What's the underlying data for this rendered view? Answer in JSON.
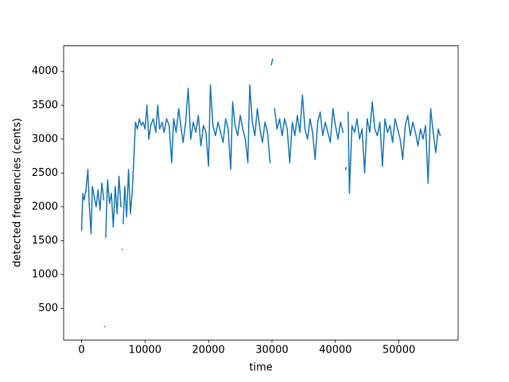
{
  "chart_data": {
    "type": "line",
    "x_label": "time",
    "y_label": "detected frequencies (cents)",
    "x": [
      0,
      200,
      400,
      700,
      1000,
      1200,
      1500,
      1700,
      2000,
      2300,
      2600,
      2900,
      3200,
      3500,
      3550,
      3600,
      3650,
      3700,
      3800,
      4100,
      4400,
      4700,
      5000,
      5300,
      5600,
      5900,
      6200,
      6300,
      6400,
      6450,
      6500,
      6550,
      6800,
      7100,
      7400,
      7700,
      8000,
      8200,
      8500,
      8800,
      9100,
      9400,
      9700,
      10000,
      10300,
      10600,
      10900,
      11300,
      11700,
      12000,
      12300,
      12700,
      13000,
      13400,
      13800,
      14200,
      14500,
      14900,
      15300,
      15700,
      16000,
      16400,
      16800,
      17200,
      17600,
      18000,
      18400,
      18800,
      19200,
      19600,
      20000,
      20300,
      20700,
      21100,
      21500,
      21900,
      22300,
      22700,
      23100,
      23500,
      23800,
      24200,
      24600,
      25000,
      25400,
      25800,
      26200,
      26500,
      26900,
      27300,
      27700,
      28100,
      28500,
      28900,
      29300,
      29700,
      29800,
      29900,
      30100,
      30200,
      30400,
      30800,
      31200,
      31600,
      32000,
      32400,
      32800,
      33200,
      33600,
      34000,
      34400,
      34800,
      35200,
      35600,
      36000,
      36400,
      36800,
      37200,
      37600,
      38000,
      38400,
      38800,
      39200,
      39600,
      40000,
      40400,
      40800,
      41200,
      41400,
      41600,
      41700,
      41800,
      42000,
      42200,
      42600,
      43000,
      43400,
      43800,
      44200,
      44600,
      45000,
      45400,
      45800,
      46200,
      46600,
      47000,
      47400,
      47800,
      48200,
      48600,
      49000,
      49400,
      49800,
      50200,
      50600,
      51000,
      51400,
      51800,
      52200,
      52600,
      53000,
      53400,
      53800,
      54200,
      54600,
      55000,
      55400,
      55800,
      56200,
      56500
    ],
    "series": [
      {
        "color": "#1f77b4",
        "values": [
          1650,
          2200,
          2100,
          2250,
          2550,
          2050,
          1600,
          2300,
          2150,
          2000,
          2250,
          1950,
          2350,
          2100,
          null,
          230,
          230,
          null,
          1550,
          2400,
          2050,
          2200,
          1700,
          2300,
          1900,
          2450,
          2000,
          null,
          1370,
          1370,
          null,
          1750,
          2300,
          1850,
          2550,
          1900,
          2250,
          2650,
          3250,
          3150,
          3300,
          3200,
          3250,
          3150,
          3500,
          3000,
          3200,
          3300,
          3100,
          3500,
          3150,
          3250,
          3100,
          3300,
          3200,
          2650,
          3300,
          3100,
          3450,
          3150,
          2950,
          3250,
          3750,
          3000,
          3250,
          3100,
          3350,
          2900,
          3200,
          3100,
          2600,
          3800,
          3200,
          3050,
          3250,
          3100,
          2950,
          3300,
          3150,
          2550,
          3550,
          3200,
          3050,
          3350,
          3150,
          3000,
          2650,
          3800,
          3250,
          3050,
          3450,
          3150,
          2950,
          3250,
          3100,
          2650,
          null,
          4100,
          4180,
          null,
          3450,
          3150,
          3300,
          3050,
          3300,
          3150,
          2650,
          3250,
          3050,
          3350,
          3100,
          3650,
          3150,
          3000,
          3300,
          3100,
          2700,
          3250,
          3400,
          3050,
          3250,
          3100,
          2950,
          3450,
          3200,
          3000,
          3250,
          3100,
          null,
          2550,
          2580,
          null,
          3400,
          2200,
          3200,
          3100,
          3300,
          3000,
          3150,
          2500,
          3300,
          3100,
          3550,
          3150,
          3050,
          3250,
          2600,
          3300,
          3100,
          3200,
          2950,
          3300,
          3150,
          3000,
          2700,
          3200,
          3350,
          3050,
          3250,
          3100,
          2900,
          3150,
          3000,
          3200,
          2350,
          3450,
          3100,
          2800,
          3150,
          3050
        ]
      }
    ],
    "xlim": [
      -2825,
      59325
    ],
    "ylim": [
      32,
      4378
    ],
    "xticks": [
      0,
      10000,
      20000,
      30000,
      40000,
      50000
    ],
    "yticks": [
      500,
      1000,
      1500,
      2000,
      2500,
      3000,
      3500,
      4000
    ]
  }
}
